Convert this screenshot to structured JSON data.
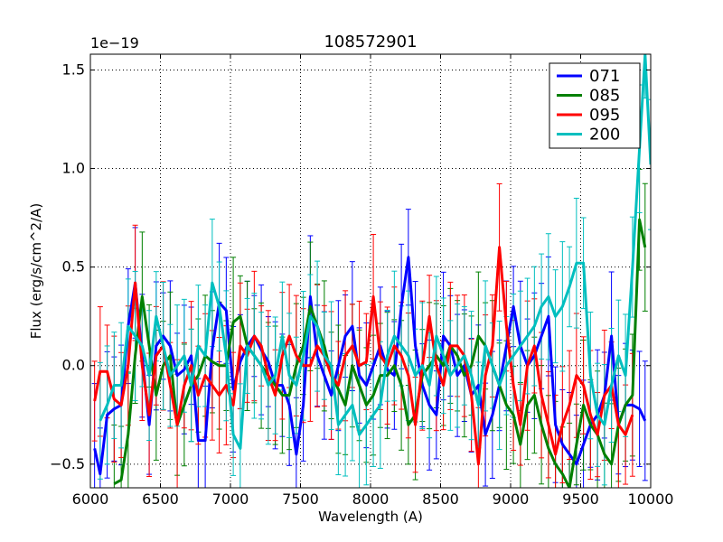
{
  "chart_data": {
    "type": "line",
    "title": "108572901",
    "xlabel": "Wavelength (A)",
    "ylabel": "Flux (erg/s/cm^2/A)",
    "y_multiplier_label": "1e−19",
    "xlim": [
      6000,
      10000
    ],
    "ylim": [
      -0.62,
      1.58
    ],
    "x_ticks": [
      6000,
      6500,
      7000,
      7500,
      8000,
      8500,
      9000,
      9500,
      10000
    ],
    "x_tick_labels": [
      "6000",
      "6500",
      "7000",
      "7500",
      "8000",
      "8500",
      "9000",
      "9500",
      "10000"
    ],
    "y_ticks": [
      -0.5,
      0.0,
      0.5,
      1.0,
      1.5
    ],
    "y_tick_labels": [
      "−0.5",
      "0.0",
      "0.5",
      "1.0",
      "1.5"
    ],
    "grid": true,
    "legend_position": "top-right",
    "series": [
      {
        "name": "071",
        "color": "#0000ff",
        "x": [
          6030,
          6070,
          6120,
          6170,
          6220,
          6270,
          6320,
          6370,
          6420,
          6470,
          6520,
          6570,
          6620,
          6670,
          6720,
          6770,
          6820,
          6870,
          6920,
          6970,
          7020,
          7070,
          7120,
          7170,
          7220,
          7270,
          7320,
          7370,
          7420,
          7470,
          7520,
          7570,
          7620,
          7670,
          7720,
          7770,
          7820,
          7870,
          7920,
          7970,
          8020,
          8070,
          8120,
          8170,
          8220,
          8270,
          8320,
          8370,
          8420,
          8470,
          8520,
          8570,
          8620,
          8670,
          8720,
          8770,
          8820,
          8870,
          8920,
          8970,
          9020,
          9070,
          9120,
          9170,
          9220,
          9270,
          9320,
          9370,
          9420,
          9470,
          9520,
          9570,
          9620,
          9670,
          9720,
          9770,
          9820,
          9870,
          9920,
          9960
        ],
        "y": [
          -0.42,
          -0.55,
          -0.25,
          -0.22,
          -0.2,
          0.2,
          0.42,
          0.05,
          -0.3,
          0.1,
          0.15,
          0.1,
          -0.05,
          -0.02,
          0.05,
          -0.38,
          -0.38,
          0.08,
          0.32,
          0.28,
          -0.12,
          0.02,
          0.1,
          0.15,
          0.08,
          0.02,
          -0.1,
          -0.1,
          -0.2,
          -0.45,
          -0.2,
          0.35,
          0.05,
          -0.05,
          -0.15,
          0.0,
          0.15,
          0.2,
          -0.05,
          -0.1,
          0.0,
          0.1,
          -0.02,
          -0.05,
          0.3,
          0.55,
          0.1,
          -0.1,
          -0.2,
          -0.25,
          0.15,
          0.1,
          -0.05,
          0.0,
          -0.15,
          -0.1,
          -0.35,
          -0.25,
          -0.1,
          0.1,
          0.3,
          0.1,
          0.0,
          0.05,
          0.15,
          0.25,
          -0.3,
          -0.4,
          -0.45,
          -0.5,
          -0.4,
          -0.3,
          -0.25,
          -0.15,
          0.15,
          -0.3,
          -0.2,
          -0.2,
          -0.22,
          -0.28
        ]
      },
      {
        "name": "085",
        "color": "#008000",
        "x": [
          6170,
          6220,
          6270,
          6320,
          6370,
          6420,
          6470,
          6520,
          6570,
          6620,
          6670,
          6720,
          6770,
          6820,
          6870,
          6920,
          6970,
          7020,
          7070,
          7120,
          7170,
          7220,
          7270,
          7320,
          7370,
          7420,
          7470,
          7520,
          7570,
          7620,
          7670,
          7720,
          7770,
          7820,
          7870,
          7920,
          7970,
          8020,
          8070,
          8120,
          8170,
          8220,
          8270,
          8320,
          8370,
          8420,
          8470,
          8520,
          8570,
          8620,
          8670,
          8720,
          8770,
          8820,
          8870,
          8920,
          8970,
          9020,
          9070,
          9120,
          9170,
          9220,
          9270,
          9320,
          9370,
          9420,
          9470,
          9520,
          9570,
          9620,
          9670,
          9720,
          9770,
          9820,
          9870,
          9920,
          9960
        ],
        "y": [
          -0.6,
          -0.58,
          -0.35,
          0.05,
          0.35,
          0.1,
          -0.15,
          0.0,
          0.05,
          -0.3,
          -0.2,
          -0.1,
          -0.05,
          0.05,
          0.02,
          0.0,
          0.0,
          0.22,
          0.25,
          0.1,
          0.05,
          0.0,
          -0.05,
          -0.1,
          -0.15,
          -0.15,
          0.0,
          0.1,
          0.3,
          0.2,
          0.1,
          -0.05,
          -0.12,
          -0.2,
          0.0,
          -0.1,
          -0.2,
          -0.15,
          -0.05,
          -0.05,
          0.0,
          -0.1,
          -0.3,
          -0.25,
          -0.05,
          0.0,
          0.05,
          0.0,
          0.1,
          0.05,
          -0.05,
          0.0,
          0.15,
          0.1,
          0.0,
          -0.1,
          -0.2,
          -0.25,
          -0.4,
          -0.2,
          -0.15,
          -0.3,
          -0.42,
          -0.5,
          -0.55,
          -0.62,
          -0.4,
          -0.2,
          -0.3,
          -0.35,
          -0.45,
          -0.5,
          -0.3,
          -0.2,
          -0.15,
          0.74,
          0.6
        ]
      },
      {
        "name": "095",
        "color": "#ff0000",
        "x": [
          6030,
          6070,
          6120,
          6170,
          6220,
          6270,
          6320,
          6370,
          6420,
          6470,
          6520,
          6570,
          6620,
          6670,
          6720,
          6770,
          6820,
          6870,
          6920,
          6970,
          7020,
          7070,
          7120,
          7170,
          7220,
          7270,
          7320,
          7370,
          7420,
          7470,
          7520,
          7570,
          7620,
          7670,
          7720,
          7770,
          7820,
          7870,
          7920,
          7970,
          8020,
          8070,
          8120,
          8170,
          8220,
          8270,
          8320,
          8370,
          8420,
          8470,
          8520,
          8570,
          8620,
          8670,
          8720,
          8770,
          8820,
          8870,
          8920,
          8970,
          9020,
          9070,
          9120,
          9170,
          9220,
          9270,
          9320,
          9370,
          9420,
          9470,
          9520,
          9570,
          9620,
          9670,
          9720,
          9770,
          9820,
          9870
        ],
        "y": [
          -0.18,
          -0.03,
          -0.03,
          -0.17,
          -0.2,
          0.0,
          0.42,
          0.0,
          -0.25,
          0.05,
          0.1,
          -0.1,
          -0.3,
          -0.1,
          0.0,
          -0.15,
          -0.05,
          -0.1,
          -0.15,
          -0.1,
          -0.2,
          0.1,
          0.05,
          0.15,
          0.1,
          -0.05,
          -0.15,
          0.05,
          0.15,
          0.05,
          0.0,
          0.0,
          0.1,
          0.05,
          -0.05,
          -0.1,
          0.05,
          0.1,
          0.0,
          0.02,
          0.35,
          0.05,
          0.0,
          0.1,
          0.05,
          -0.05,
          -0.3,
          0.0,
          0.25,
          0.0,
          -0.1,
          0.1,
          0.1,
          0.05,
          -0.15,
          -0.5,
          -0.05,
          0.1,
          0.6,
          0.2,
          -0.1,
          -0.3,
          0.0,
          0.1,
          -0.15,
          -0.3,
          -0.45,
          -0.3,
          -0.2,
          -0.05,
          -0.1,
          -0.25,
          -0.35,
          -0.15,
          -0.1,
          -0.3,
          -0.35,
          -0.25
        ]
      },
      {
        "name": "200",
        "color": "#00bfbf",
        "x": [
          6070,
          6120,
          6170,
          6220,
          6270,
          6320,
          6370,
          6420,
          6470,
          6520,
          6570,
          6620,
          6670,
          6720,
          6770,
          6820,
          6870,
          6920,
          6970,
          7020,
          7070,
          7120,
          7170,
          7220,
          7270,
          7320,
          7370,
          7420,
          7470,
          7520,
          7570,
          7620,
          7670,
          7720,
          7770,
          7820,
          7870,
          7920,
          7970,
          8020,
          8070,
          8120,
          8170,
          8220,
          8270,
          8320,
          8370,
          8420,
          8470,
          8520,
          8570,
          8620,
          8670,
          8720,
          8770,
          8820,
          8870,
          8920,
          8970,
          9020,
          9070,
          9120,
          9170,
          9220,
          9270,
          9320,
          9370,
          9420,
          9470,
          9520,
          9570,
          9620,
          9670,
          9720,
          9770,
          9820,
          9870,
          9920,
          9960,
          10000
        ],
        "y": [
          -0.28,
          -0.2,
          -0.1,
          -0.1,
          0.2,
          0.15,
          0.1,
          -0.05,
          0.25,
          0.1,
          -0.05,
          0.0,
          0.05,
          -0.1,
          0.1,
          0.05,
          0.42,
          0.3,
          0.05,
          -0.35,
          -0.42,
          0.1,
          0.05,
          0.0,
          -0.1,
          -0.05,
          0.15,
          -0.05,
          -0.1,
          0.05,
          0.25,
          0.2,
          0.05,
          0.0,
          -0.3,
          -0.25,
          -0.2,
          -0.35,
          -0.3,
          -0.25,
          -0.2,
          0.05,
          0.15,
          0.1,
          0.05,
          -0.05,
          0.0,
          -0.1,
          0.15,
          0.05,
          -0.05,
          0.0,
          0.05,
          -0.05,
          -0.2,
          0.1,
          0.0,
          -0.1,
          0.0,
          0.05,
          0.1,
          0.15,
          0.2,
          0.3,
          0.35,
          0.25,
          0.3,
          0.4,
          0.52,
          0.52,
          -0.05,
          -0.25,
          -0.3,
          -0.1,
          0.05,
          -0.05,
          0.5,
          1.1,
          1.58,
          1.02
        ]
      }
    ]
  }
}
